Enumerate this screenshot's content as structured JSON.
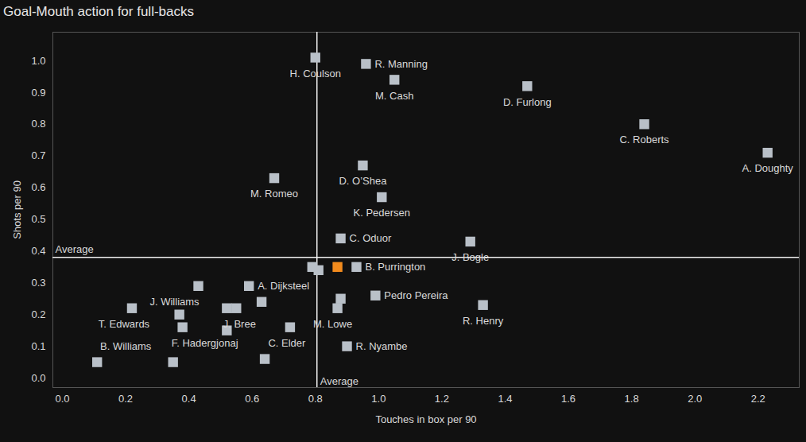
{
  "chart_data": {
    "type": "scatter",
    "title": "Goal-Mouth action for full-backs",
    "x_label": "Touches in box per 90",
    "y_label": "Shots per 90",
    "marker": "square",
    "grid": false,
    "xlim": [
      -0.03,
      2.33
    ],
    "ylim": [
      -0.03,
      1.09
    ],
    "xticks": [
      {
        "value": 0,
        "label": "0.0"
      },
      0.2,
      0.4,
      0.6,
      0.8,
      {
        "value": 1,
        "label": "1.0"
      },
      1.2,
      1.4,
      1.6,
      1.8,
      {
        "value": 2,
        "label": "2.0"
      },
      2.2
    ],
    "yticks": [
      {
        "value": 0,
        "label": "0.0"
      },
      0.1,
      0.2,
      0.3,
      0.4,
      0.5,
      0.6,
      0.7,
      0.8,
      0.9,
      {
        "value": 1,
        "label": "1.0"
      }
    ],
    "x": [
      0.8,
      0.96,
      1.05,
      1.47,
      1.84,
      2.23,
      0.67,
      0.95,
      1.01,
      0.88,
      1.29,
      0.79,
      0.81,
      0.87,
      0.93,
      0.59,
      0.43,
      0.22,
      0.37,
      0.38,
      0.52,
      0.55,
      0.63,
      0.52,
      0.72,
      0.64,
      0.35,
      0.11,
      0.88,
      0.87,
      0.99,
      0.9,
      1.33
    ],
    "y": [
      1.01,
      0.99,
      0.94,
      0.92,
      0.8,
      0.71,
      0.63,
      0.67,
      0.57,
      0.44,
      0.43,
      0.35,
      0.34,
      0.35,
      0.35,
      0.29,
      0.29,
      0.22,
      0.2,
      0.16,
      0.22,
      0.22,
      0.24,
      0.15,
      0.16,
      0.06,
      0.05,
      0.05,
      0.25,
      0.22,
      0.26,
      0.1,
      0.23
    ],
    "point_labels": [
      "H. Coulson",
      "R. Manning",
      "M. Cash",
      "D. Furlong",
      "C. Roberts",
      "A. Doughty",
      "M. Romeo",
      "D. O’Shea",
      "K. Pedersen",
      "C. Oduor",
      "J. Bogle",
      null,
      null,
      null,
      "B. Purrington",
      "A. Dijksteel",
      "J. Williams",
      "T. Edwards",
      null,
      "F. Hadergjonaj",
      null,
      "J. Bree",
      null,
      null,
      "C. Elder",
      null,
      null,
      "B. Williams",
      null,
      "M. Lowe",
      "Pedro Pereira",
      "R. Nyambe",
      "R. Henry"
    ],
    "colors": [
      "#b9c0c8",
      "#b9c0c8",
      "#b9c0c8",
      "#b9c0c8",
      "#b9c0c8",
      "#b9c0c8",
      "#b9c0c8",
      "#b9c0c8",
      "#b9c0c8",
      "#b9c0c8",
      "#b9c0c8",
      "#b9c0c8",
      "#b9c0c8",
      "#f28b1d",
      "#b9c0c8",
      "#b9c0c8",
      "#b9c0c8",
      "#b9c0c8",
      "#b9c0c8",
      "#b9c0c8",
      "#b9c0c8",
      "#b9c0c8",
      "#b9c0c8",
      "#b9c0c8",
      "#b9c0c8",
      "#b9c0c8",
      "#b9c0c8",
      "#b9c0c8",
      "#b9c0c8",
      "#b9c0c8",
      "#b9c0c8",
      "#b9c0c8",
      "#b9c0c8"
    ],
    "annotations": [
      {
        "text": "Average",
        "x": 0.805
      },
      {
        "text": "Average",
        "y": 0.38
      }
    ]
  }
}
